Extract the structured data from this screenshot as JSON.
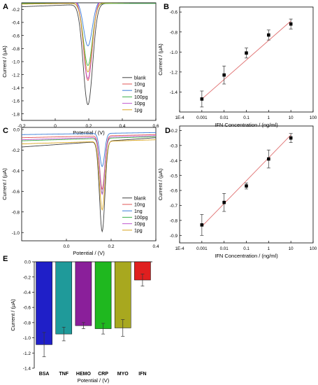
{
  "chart_data": [
    {
      "panel": "A",
      "type": "line",
      "xlabel": "Potential / (V)",
      "ylabel": "Current / (μA)",
      "xlim": [
        -0.2,
        0.6
      ],
      "ylim": [
        -1.9,
        -0.1
      ],
      "xticks": [
        -0.2,
        0,
        0.2,
        0.4,
        0.6
      ],
      "xtick_labels": [
        "-0.2",
        "0",
        "0.2",
        "0.4",
        "0.6"
      ],
      "yticks": [
        -1.8,
        -1.6,
        -1.4,
        -1.2,
        -1.0,
        -0.8,
        -0.6,
        -0.4,
        -0.2
      ],
      "ytick_labels": [
        "-1.8",
        "-1.6",
        "-1.4",
        "-1.2",
        "-1.0",
        "-0.8",
        "-0.6",
        "-0.4",
        "-0.2"
      ],
      "legend_position": "bottom-right",
      "peak_x": 0.195,
      "series": [
        {
          "name": "blank",
          "color": "#404040",
          "base_left": -0.16,
          "base_right": -0.08,
          "peak": -1.66,
          "width": 0.028
        },
        {
          "name": "10ng",
          "color": "#e05555",
          "base_left": -0.09,
          "base_right": -0.05,
          "peak": -1.29,
          "width": 0.026
        },
        {
          "name": "1ng",
          "color": "#3a7dd8",
          "base_left": -0.07,
          "base_right": -0.06,
          "peak": -0.76,
          "width": 0.026
        },
        {
          "name": "100pg",
          "color": "#3db04a",
          "base_left": -0.11,
          "base_right": -0.11,
          "peak": -1.06,
          "width": 0.026
        },
        {
          "name": "10pg",
          "color": "#c058d0",
          "base_left": -0.08,
          "base_right": -0.03,
          "peak": -1.26,
          "width": 0.026
        },
        {
          "name": "1pg",
          "color": "#d9a520",
          "base_left": -0.12,
          "base_right": -0.09,
          "peak": -1.16,
          "width": 0.026
        }
      ]
    },
    {
      "panel": "B",
      "type": "scatter",
      "xlabel": "IFN Concentration / (ng/ml)",
      "ylabel": "Current / (μA)",
      "xscale": "log",
      "xlim": [
        0.0001,
        100
      ],
      "ylim": [
        -1.6,
        -0.55
      ],
      "xticks": [
        0.0001,
        0.001,
        0.01,
        0.1,
        1,
        10,
        100
      ],
      "xtick_labels": [
        "1E-4",
        "0.001",
        "0.01",
        "0.1",
        "1",
        "10",
        "100"
      ],
      "yticks": [
        -1.4,
        -1.2,
        -1.0,
        -0.8,
        -0.6
      ],
      "ytick_labels": [
        "-1.4",
        "-1.2",
        "-1.0",
        "-0.8",
        "-0.6"
      ],
      "x": [
        0.001,
        0.01,
        0.1,
        1,
        10
      ],
      "y": [
        -1.47,
        -1.23,
        -1.01,
        -0.83,
        -0.72
      ],
      "err": [
        0.08,
        0.09,
        0.05,
        0.05,
        0.05
      ],
      "fit": {
        "x": [
          0.001,
          10
        ],
        "y": [
          -1.47,
          -0.69
        ],
        "color": "#e07070"
      }
    },
    {
      "panel": "C",
      "type": "line",
      "xlabel": "Potential / (V)",
      "ylabel": "Current / (μA)",
      "xlim": [
        -0.2,
        0.4
      ],
      "ylim": [
        -1.08,
        0.02
      ],
      "xticks": [
        0,
        0.2,
        0.4
      ],
      "xtick_labels": [
        "0.0",
        "0.2",
        "0.4"
      ],
      "yticks": [
        -1.0,
        -0.8,
        -0.6,
        -0.4,
        -0.2,
        0.0
      ],
      "ytick_labels": [
        "-1.0",
        "-0.8",
        "-0.6",
        "-0.4",
        "-0.2",
        "0.0"
      ],
      "legend_position": "bottom-right",
      "peak_x": 0.16,
      "series": [
        {
          "name": "blank",
          "color": "#404040",
          "base_left": -0.17,
          "base_right": -0.08,
          "peak": -0.99,
          "width": 0.012
        },
        {
          "name": "10ng",
          "color": "#e05555",
          "base_left": -0.08,
          "base_right": -0.05,
          "peak": -0.58,
          "width": 0.011
        },
        {
          "name": "1ng",
          "color": "#3a7dd8",
          "base_left": -0.05,
          "base_right": -0.03,
          "peak": -0.36,
          "width": 0.011
        },
        {
          "name": "100pg",
          "color": "#3db04a",
          "base_left": -0.11,
          "base_right": -0.07,
          "peak": -0.62,
          "width": 0.011
        },
        {
          "name": "10pg",
          "color": "#c058d0",
          "base_left": -0.1,
          "base_right": -0.06,
          "peak": -0.63,
          "width": 0.011
        },
        {
          "name": "1pg",
          "color": "#d9a520",
          "base_left": -0.14,
          "base_right": -0.1,
          "peak": -0.78,
          "width": 0.012
        }
      ]
    },
    {
      "panel": "D",
      "type": "scatter",
      "xlabel": "IFN Concentration / (ng/ml)",
      "ylabel": "Current / (μA)",
      "xscale": "log",
      "xlim": [
        0.0001,
        100
      ],
      "ylim": [
        -0.95,
        -0.17
      ],
      "xticks": [
        0.0001,
        0.001,
        0.01,
        0.1,
        1,
        10,
        100
      ],
      "xtick_labels": [
        "1E-4",
        "0.001",
        "0.01",
        "0.1",
        "1",
        "10",
        "100"
      ],
      "yticks": [
        -0.9,
        -0.8,
        -0.7,
        -0.6,
        -0.5,
        -0.4,
        -0.3,
        -0.2
      ],
      "ytick_labels": [
        "-0.9",
        "-0.8",
        "-0.7",
        "-0.6",
        "-0.5",
        "-0.4",
        "-0.3",
        "-0.2"
      ],
      "x": [
        0.001,
        0.01,
        0.1,
        1,
        10
      ],
      "y": [
        -0.83,
        -0.68,
        -0.57,
        -0.39,
        -0.25
      ],
      "err": [
        0.07,
        0.06,
        0.02,
        0.06,
        0.03
      ],
      "fit": {
        "x": [
          0.001,
          10
        ],
        "y": [
          -0.84,
          -0.23
        ],
        "color": "#e07070"
      }
    },
    {
      "panel": "E",
      "type": "bar",
      "xlabel": "Potential / (V)",
      "ylabel": "Current / (μA)",
      "ylim": [
        -1.4,
        0.0
      ],
      "yticks": [
        0.0,
        -0.2,
        -0.4,
        -0.6,
        -0.8,
        -1.0,
        -1.2,
        -1.4
      ],
      "ytick_labels": [
        "0.0",
        "-0.2",
        "-0.4",
        "-0.6",
        "-0.8",
        "-1.0",
        "-1.2",
        "-1.4"
      ],
      "categories": [
        "BSA",
        "TNF",
        "HEMO",
        "CRP",
        "MYO",
        "IFN"
      ],
      "values": [
        -1.09,
        -0.95,
        -0.84,
        -0.88,
        -0.87,
        -0.24
      ],
      "err": [
        0.16,
        0.09,
        0.04,
        0.07,
        0.11,
        0.08
      ],
      "colors": [
        "#1f1fc8",
        "#1f9a9a",
        "#8a1f9a",
        "#1fb81f",
        "#a8a81f",
        "#e01f1f"
      ]
    }
  ]
}
